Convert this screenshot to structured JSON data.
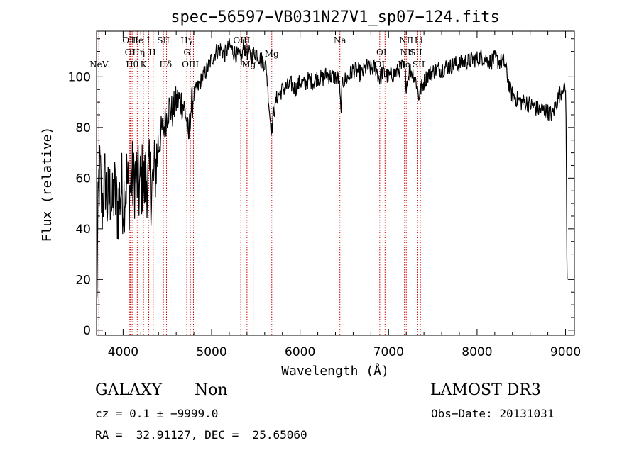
{
  "chart_data": {
    "type": "line",
    "title": "spec−56597−VB031N27V1_sp07−124.fits",
    "xlabel": "Wavelength (Å)",
    "ylabel": "Flux (relative)",
    "xlim": [
      3700,
      9100
    ],
    "ylim": [
      -2,
      118
    ],
    "xticks": [
      4000,
      5000,
      6000,
      7000,
      8000,
      9000
    ],
    "yticks": [
      0,
      20,
      40,
      60,
      80,
      100
    ],
    "grid": false,
    "legend": "none",
    "line_color": "#000000",
    "marker_color": "#cc0000",
    "anchors": [
      [
        3700,
        5
      ],
      [
        3712,
        35
      ],
      [
        3725,
        58
      ],
      [
        3740,
        62
      ],
      [
        3760,
        48
      ],
      [
        3780,
        55
      ],
      [
        3800,
        60
      ],
      [
        3820,
        50
      ],
      [
        3840,
        52
      ],
      [
        3860,
        55
      ],
      [
        3880,
        47
      ],
      [
        3900,
        56
      ],
      [
        3920,
        50
      ],
      [
        3940,
        48
      ],
      [
        3960,
        52
      ],
      [
        3980,
        57
      ],
      [
        4000,
        52
      ],
      [
        4020,
        55
      ],
      [
        4040,
        60
      ],
      [
        4060,
        54
      ],
      [
        4080,
        56
      ],
      [
        4100,
        61
      ],
      [
        4120,
        57
      ],
      [
        4140,
        62
      ],
      [
        4160,
        59
      ],
      [
        4180,
        55
      ],
      [
        4200,
        58
      ],
      [
        4220,
        60
      ],
      [
        4240,
        56
      ],
      [
        4260,
        62
      ],
      [
        4280,
        58
      ],
      [
        4300,
        60
      ],
      [
        4320,
        56
      ],
      [
        4340,
        58
      ],
      [
        4360,
        63
      ],
      [
        4380,
        68
      ],
      [
        4400,
        72
      ],
      [
        4430,
        78
      ],
      [
        4460,
        80
      ],
      [
        4490,
        84
      ],
      [
        4520,
        88
      ],
      [
        4560,
        86
      ],
      [
        4600,
        90
      ],
      [
        4640,
        91
      ],
      [
        4680,
        89
      ],
      [
        4710,
        85
      ],
      [
        4725,
        80
      ],
      [
        4740,
        74
      ],
      [
        4760,
        86
      ],
      [
        4800,
        93
      ],
      [
        4850,
        96
      ],
      [
        4900,
        100
      ],
      [
        4950,
        103
      ],
      [
        5000,
        107
      ],
      [
        5050,
        110
      ],
      [
        5100,
        111
      ],
      [
        5150,
        109
      ],
      [
        5200,
        112
      ],
      [
        5250,
        110
      ],
      [
        5300,
        108
      ],
      [
        5340,
        107
      ],
      [
        5360,
        112
      ],
      [
        5400,
        110
      ],
      [
        5450,
        108
      ],
      [
        5500,
        110
      ],
      [
        5550,
        107
      ],
      [
        5590,
        106
      ],
      [
        5620,
        103
      ],
      [
        5640,
        93
      ],
      [
        5660,
        84
      ],
      [
        5680,
        79
      ],
      [
        5700,
        86
      ],
      [
        5740,
        92
      ],
      [
        5800,
        95
      ],
      [
        5850,
        96
      ],
      [
        5900,
        97
      ],
      [
        5950,
        95
      ],
      [
        6000,
        98
      ],
      [
        6050,
        97
      ],
      [
        6100,
        99
      ],
      [
        6150,
        98
      ],
      [
        6200,
        100
      ],
      [
        6250,
        99
      ],
      [
        6300,
        101
      ],
      [
        6350,
        100
      ],
      [
        6400,
        100
      ],
      [
        6440,
        99
      ],
      [
        6460,
        86
      ],
      [
        6480,
        98
      ],
      [
        6550,
        100
      ],
      [
        6600,
        103
      ],
      [
        6650,
        102
      ],
      [
        6700,
        101
      ],
      [
        6750,
        104
      ],
      [
        6800,
        103
      ],
      [
        6850,
        104
      ],
      [
        6880,
        101
      ],
      [
        6900,
        99
      ],
      [
        6930,
        102
      ],
      [
        6960,
        101
      ],
      [
        7000,
        100
      ],
      [
        7050,
        101
      ],
      [
        7100,
        102
      ],
      [
        7150,
        104
      ],
      [
        7180,
        103
      ],
      [
        7200,
        97
      ],
      [
        7240,
        103
      ],
      [
        7280,
        101
      ],
      [
        7320,
        97
      ],
      [
        7340,
        92
      ],
      [
        7360,
        95
      ],
      [
        7400,
        98
      ],
      [
        7450,
        101
      ],
      [
        7500,
        102
      ],
      [
        7550,
        103
      ],
      [
        7600,
        103
      ],
      [
        7650,
        104
      ],
      [
        7700,
        104
      ],
      [
        7750,
        105
      ],
      [
        7800,
        105
      ],
      [
        7850,
        106
      ],
      [
        7900,
        106
      ],
      [
        7950,
        107
      ],
      [
        8000,
        107
      ],
      [
        8050,
        108
      ],
      [
        8100,
        107
      ],
      [
        8150,
        106
      ],
      [
        8200,
        107
      ],
      [
        8250,
        106
      ],
      [
        8300,
        106
      ],
      [
        8320,
        104
      ],
      [
        8350,
        99
      ],
      [
        8380,
        94
      ],
      [
        8420,
        92
      ],
      [
        8460,
        91
      ],
      [
        8500,
        90
      ],
      [
        8550,
        90
      ],
      [
        8600,
        89
      ],
      [
        8650,
        88
      ],
      [
        8700,
        87
      ],
      [
        8750,
        87
      ],
      [
        8800,
        86
      ],
      [
        8850,
        85
      ],
      [
        8880,
        88
      ],
      [
        8920,
        92
      ],
      [
        8960,
        95
      ],
      [
        8990,
        96
      ],
      [
        9000,
        94
      ],
      [
        9005,
        86
      ],
      [
        9010,
        60
      ],
      [
        9015,
        28
      ],
      [
        9018,
        20
      ]
    ],
    "spectral_lines": [
      {
        "label": "NeV",
        "x": 3726,
        "row": 3
      },
      {
        "label": "OII",
        "x": 4068,
        "row": 1
      },
      {
        "label": "OI",
        "x": 4076,
        "row": 2
      },
      {
        "label": "Hθ",
        "x": 4102,
        "row": 3
      },
      {
        "label": "He",
        "x": 4160,
        "row": 1
      },
      {
        "label": "Hη",
        "x": 4175,
        "row": 2
      },
      {
        "label": "K",
        "x": 4230,
        "row": 3
      },
      {
        "label": "I",
        "x": 4285,
        "row": 1
      },
      {
        "label": "H",
        "x": 4330,
        "row": 2
      },
      {
        "label": "SII",
        "x": 4455,
        "row": 1
      },
      {
        "label": "Hδ",
        "x": 4480,
        "row": 3
      },
      {
        "label": "Hγ",
        "x": 4720,
        "row": 1
      },
      {
        "label": "G",
        "x": 4720,
        "row": 2
      },
      {
        "label": "OIII",
        "x": 4760,
        "row": 3
      },
      {
        "label": "OIII",
        "x": 5340,
        "row": 1
      },
      {
        "label": "Mg",
        "x": 5420,
        "row": 3
      },
      {
        "label": "Mg",
        "x": 5680,
        "row": 4
      },
      {
        "label": "Na",
        "x": 6450,
        "row": 1
      },
      {
        "label": "OI",
        "x": 6920,
        "row": 2
      },
      {
        "label": "OI",
        "x": 6900,
        "row": 3
      },
      {
        "label": "NII",
        "x": 7200,
        "row": 1
      },
      {
        "label": "Li",
        "x": 7340,
        "row": 1
      },
      {
        "label": "NII",
        "x": 7210,
        "row": 2
      },
      {
        "label": "SII",
        "x": 7310,
        "row": 2
      },
      {
        "label": "Hα",
        "x": 7180,
        "row": 3
      },
      {
        "label": "SII",
        "x": 7340,
        "row": 3
      }
    ],
    "line_markers_x": [
      3726,
      4070,
      4080,
      4102,
      4160,
      4230,
      4290,
      4340,
      4455,
      4490,
      4720,
      4760,
      4795,
      5330,
      5400,
      5470,
      5680,
      6450,
      6900,
      6960,
      7180,
      7200,
      7330,
      7360
    ]
  },
  "footer": {
    "object_class": "GALAXY",
    "subclass": "Non",
    "survey": "LAMOST DR3",
    "cz": "cz = 0.1 ± −9999.0",
    "obs_date": "Obs−Date: 20131031",
    "coords": "RA =  32.91127, DEC =  25.65060"
  }
}
